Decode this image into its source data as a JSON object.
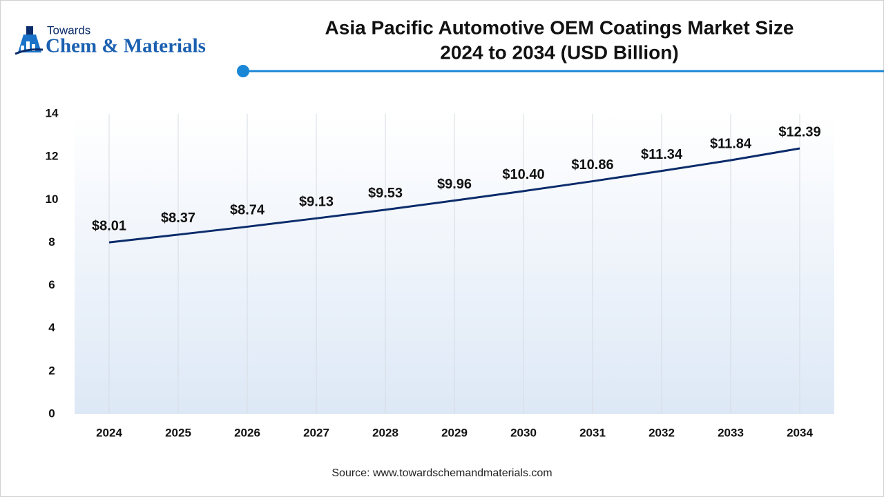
{
  "logo": {
    "top": "Towards",
    "name": "Chem & Materials"
  },
  "chart_data": {
    "type": "line",
    "title": "Asia Pacific Automotive OEM Coatings Market Size",
    "subtitle": "2024 to 2034 (USD Billion)",
    "categories": [
      "2024",
      "2025",
      "2026",
      "2027",
      "2028",
      "2029",
      "2030",
      "2031",
      "2032",
      "2033",
      "2034"
    ],
    "values": [
      8.01,
      8.37,
      8.74,
      9.13,
      9.53,
      9.96,
      10.4,
      10.86,
      11.34,
      11.84,
      12.39
    ],
    "value_labels": [
      "$8.01",
      "$8.37",
      "$8.74",
      "$9.13",
      "$9.53",
      "$9.96",
      "$10.40",
      "$10.86",
      "$11.34",
      "$11.84",
      "$12.39"
    ],
    "color": "#0b2c6b",
    "ylim": [
      0,
      14
    ],
    "yticks": [
      0,
      2,
      4,
      6,
      8,
      10,
      12,
      14
    ],
    "grid": true,
    "source": "Source: www.towardschemandmaterials.com"
  }
}
